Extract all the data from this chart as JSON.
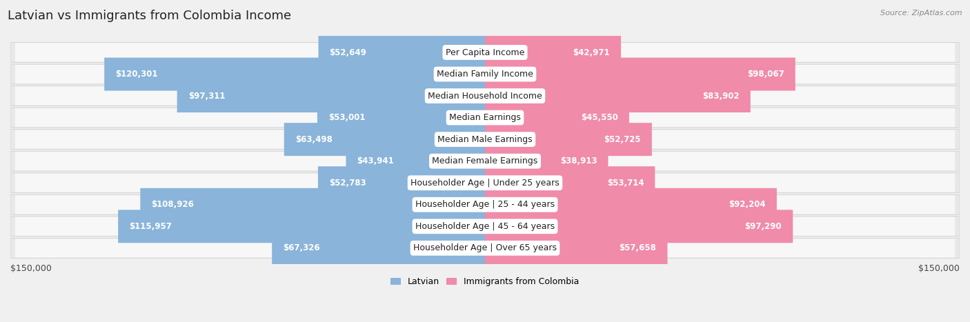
{
  "title": "Latvian vs Immigrants from Colombia Income",
  "source": "Source: ZipAtlas.com",
  "categories": [
    "Per Capita Income",
    "Median Family Income",
    "Median Household Income",
    "Median Earnings",
    "Median Male Earnings",
    "Median Female Earnings",
    "Householder Age | Under 25 years",
    "Householder Age | 25 - 44 years",
    "Householder Age | 45 - 64 years",
    "Householder Age | Over 65 years"
  ],
  "latvian_values": [
    52649,
    120301,
    97311,
    53001,
    63498,
    43941,
    52783,
    108926,
    115957,
    67326
  ],
  "colombia_values": [
    42971,
    98067,
    83902,
    45550,
    52725,
    38913,
    53714,
    92204,
    97290,
    57658
  ],
  "latvian_labels": [
    "$52,649",
    "$120,301",
    "$97,311",
    "$53,001",
    "$63,498",
    "$43,941",
    "$52,783",
    "$108,926",
    "$115,957",
    "$67,326"
  ],
  "colombia_labels": [
    "$42,971",
    "$98,067",
    "$83,902",
    "$45,550",
    "$52,725",
    "$38,913",
    "$53,714",
    "$92,204",
    "$97,290",
    "$57,658"
  ],
  "max_value": 150000,
  "latvian_color": "#8ab4d9",
  "colombia_color": "#f08baa",
  "background_color": "#f0f0f0",
  "row_bg_color": "#e2e2e2",
  "row_bg_color_alt": "#ffffff",
  "legend_latvian": "Latvian",
  "legend_colombia": "Immigrants from Colombia",
  "xlabel_left": "$150,000",
  "xlabel_right": "$150,000",
  "title_fontsize": 13,
  "label_fontsize": 8.5,
  "category_fontsize": 9,
  "inside_label_threshold": 30000
}
